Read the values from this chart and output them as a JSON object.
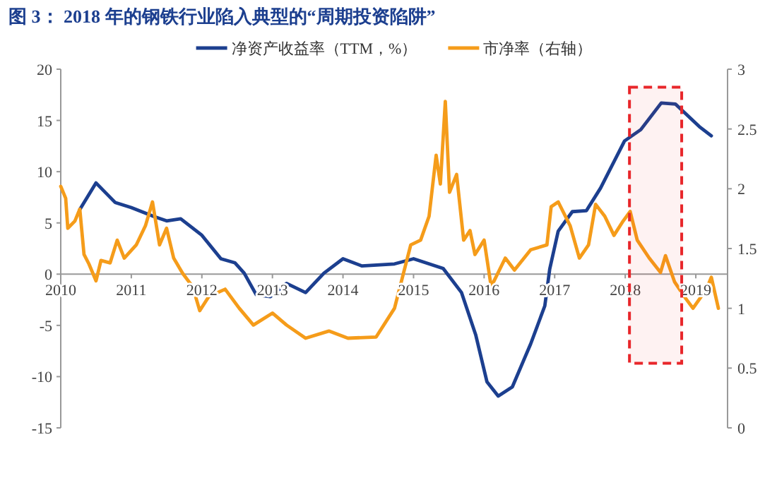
{
  "chart_data": {
    "type": "line",
    "title": "图 3：  2018 年的钢铁行业陷入典型的“周期投资陷阱”",
    "xlim": [
      2010,
      2019.45
    ],
    "xticks": [
      2010,
      2011,
      2012,
      2013,
      2014,
      2015,
      2016,
      2017,
      2018,
      2019
    ],
    "ylim": [
      -15,
      20
    ],
    "yticks": [
      -15,
      -10,
      -5,
      0,
      5,
      10,
      15,
      20
    ],
    "y2lim": [
      0,
      3
    ],
    "y2ticks": [
      0,
      0.5,
      1,
      1.5,
      2,
      2.5,
      3
    ],
    "grid": false,
    "legend": "top",
    "marker": "none",
    "line_style": "solid",
    "bands": [
      {
        "axis": "x",
        "from": 2018.06,
        "to": 2018.8,
        "label": null,
        "color": "#e8262a"
      }
    ],
    "series": [
      {
        "name": "净资产收益率（TTM，%）",
        "color": "#1c3f8f",
        "x": [
          2010.27,
          2010.5,
          2010.77,
          2011.0,
          2011.33,
          2011.5,
          2011.7,
          2012.0,
          2012.27,
          2012.47,
          2012.6,
          2012.77,
          2012.97,
          2013.2,
          2013.47,
          2013.73,
          2014.0,
          2014.27,
          2014.73,
          2015.0,
          2015.42,
          2015.68,
          2015.88,
          2016.04,
          2016.2,
          2016.4,
          2016.66,
          2016.86,
          2016.93,
          2017.05,
          2017.25,
          2017.45,
          2017.65,
          2017.99,
          2018.22,
          2018.51,
          2018.71,
          2019.05,
          2019.22
        ],
        "values": [
          6.3,
          8.9,
          7.0,
          6.5,
          5.6,
          5.2,
          5.4,
          3.8,
          1.5,
          1.1,
          0.1,
          -2.0,
          -2.2,
          -0.9,
          -1.8,
          0.1,
          1.5,
          0.8,
          1.0,
          1.5,
          0.55,
          -1.8,
          -5.9,
          -10.5,
          -11.9,
          -11.0,
          -6.8,
          -3.1,
          0.5,
          4.2,
          6.1,
          6.2,
          8.4,
          13.0,
          14.1,
          16.7,
          16.6,
          14.4,
          13.5
        ]
      },
      {
        "name": "市净率（右轴）",
        "color": "#f59c1a",
        "axis": "y2",
        "x": [
          2010.0,
          2010.07,
          2010.1,
          2010.2,
          2010.27,
          2010.33,
          2010.4,
          2010.5,
          2010.57,
          2010.7,
          2010.8,
          2010.9,
          2011.07,
          2011.2,
          2011.3,
          2011.4,
          2011.5,
          2011.6,
          2011.73,
          2011.87,
          2011.97,
          2012.1,
          2012.33,
          2012.53,
          2012.73,
          2013.0,
          2013.2,
          2013.47,
          2013.8,
          2014.07,
          2014.47,
          2014.73,
          2014.96,
          2015.1,
          2015.22,
          2015.32,
          2015.38,
          2015.45,
          2015.51,
          2015.61,
          2015.71,
          2015.8,
          2015.87,
          2016.0,
          2016.1,
          2016.3,
          2016.43,
          2016.66,
          2016.89,
          2016.95,
          2017.05,
          2017.22,
          2017.35,
          2017.48,
          2017.58,
          2017.71,
          2017.84,
          2017.97,
          2018.07,
          2018.17,
          2018.34,
          2018.5,
          2018.57,
          2018.7,
          2018.86,
          2018.96,
          2019.15,
          2019.22,
          2019.32
        ],
        "values": [
          2.02,
          1.92,
          1.67,
          1.73,
          1.83,
          1.45,
          1.37,
          1.23,
          1.4,
          1.38,
          1.57,
          1.42,
          1.53,
          1.69,
          1.89,
          1.53,
          1.67,
          1.42,
          1.29,
          1.18,
          0.98,
          1.1,
          1.16,
          1.0,
          0.86,
          0.96,
          0.86,
          0.75,
          0.81,
          0.75,
          0.76,
          1.0,
          1.53,
          1.57,
          1.77,
          2.28,
          2.04,
          2.73,
          1.97,
          2.12,
          1.57,
          1.65,
          1.45,
          1.57,
          1.18,
          1.42,
          1.32,
          1.49,
          1.53,
          1.85,
          1.89,
          1.69,
          1.42,
          1.53,
          1.87,
          1.77,
          1.61,
          1.73,
          1.81,
          1.57,
          1.42,
          1.3,
          1.44,
          1.22,
          1.08,
          1.0,
          1.16,
          1.26,
          1.0
        ]
      }
    ]
  }
}
